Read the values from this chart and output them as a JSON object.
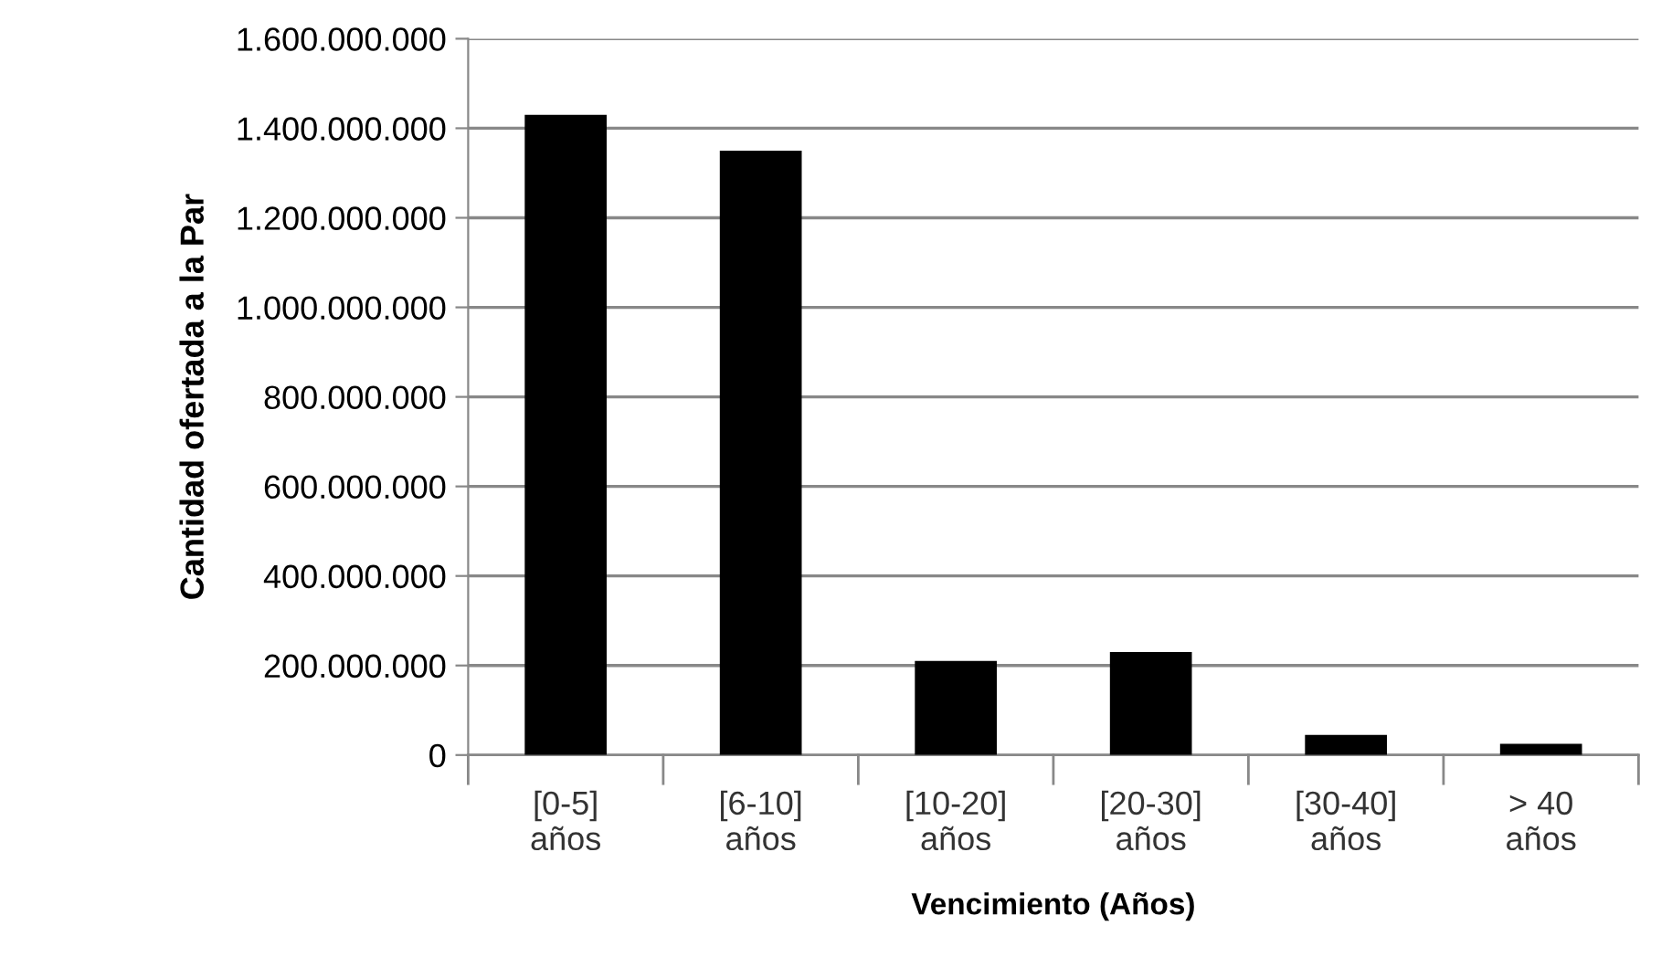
{
  "chart_data": {
    "type": "bar",
    "xlabel": "Vencimiento (Años)",
    "ylabel": "Cantidad ofertada a la Par",
    "categories": [
      "[0-5]\naños",
      "[6-10]\naños",
      "[10-20]\naños",
      "[20-30]\naños",
      "[30-40]\naños",
      "> 40\naños"
    ],
    "values": [
      1430000000,
      1350000000,
      210000000,
      230000000,
      45000000,
      25000000
    ],
    "color": "#000000",
    "ylim": [
      0,
      1600000000
    ],
    "yticks": [
      {
        "value": 0,
        "label": "0"
      },
      {
        "value": 200000000,
        "label": "200.000.000"
      },
      {
        "value": 400000000,
        "label": "400.000.000"
      },
      {
        "value": 600000000,
        "label": "600.000.000"
      },
      {
        "value": 800000000,
        "label": "800.000.000"
      },
      {
        "value": 1000000000,
        "label": "1.000.000.000"
      },
      {
        "value": 1200000000,
        "label": "1.200.000.000"
      },
      {
        "value": 1400000000,
        "label": "1.400.000.000"
      },
      {
        "value": 1600000000,
        "label": "1.600.000.000"
      }
    ],
    "grid": "y"
  }
}
